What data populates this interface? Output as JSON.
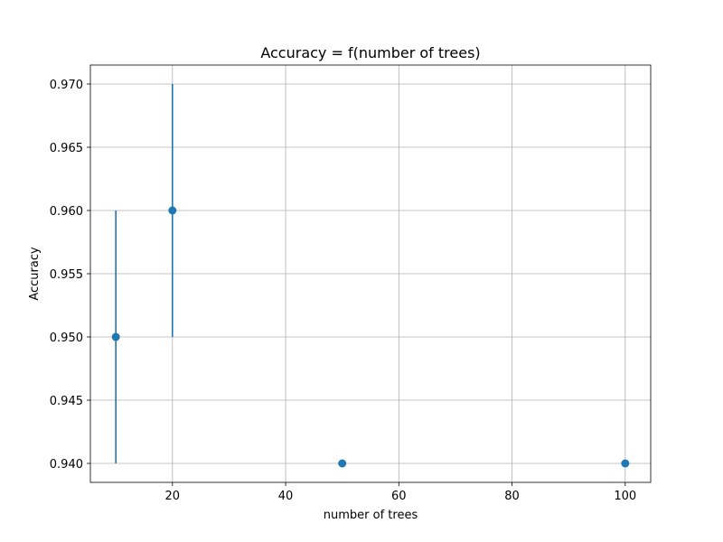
{
  "chart_data": {
    "type": "scatter",
    "title": "Accuracy = f(number of trees)",
    "xlabel": "number of trees",
    "ylabel": "Accuracy",
    "xlim": [
      5.5,
      104.5
    ],
    "ylim": [
      0.9385,
      0.9715
    ],
    "x_ticks": [
      20,
      40,
      60,
      80,
      100
    ],
    "x_tick_labels": [
      "20",
      "40",
      "60",
      "80",
      "100"
    ],
    "y_ticks": [
      0.94,
      0.945,
      0.95,
      0.955,
      0.96,
      0.965,
      0.97
    ],
    "y_tick_labels": [
      "0.940",
      "0.945",
      "0.950",
      "0.955",
      "0.960",
      "0.965",
      "0.970"
    ],
    "grid": true,
    "series": [
      {
        "color": "#1f77b4",
        "points": [
          {
            "x": 10,
            "y": 0.95,
            "err": 0.01
          },
          {
            "x": 20,
            "y": 0.96,
            "err": 0.01
          },
          {
            "x": 50,
            "y": 0.94,
            "err": 0.0
          },
          {
            "x": 100,
            "y": 0.94,
            "err": 0.0
          }
        ]
      }
    ]
  }
}
